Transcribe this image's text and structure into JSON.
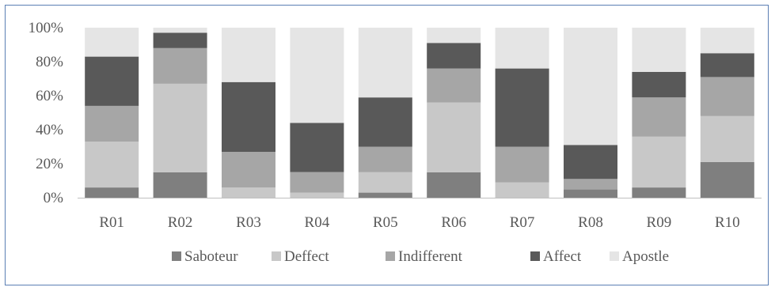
{
  "chart_data": {
    "type": "bar",
    "stacked": true,
    "percent": true,
    "categories": [
      "R01",
      "R02",
      "R03",
      "R04",
      "R05",
      "R06",
      "R07",
      "R08",
      "R09",
      "R10"
    ],
    "series": [
      {
        "name": "Saboteur",
        "color": "#7f7f7f",
        "values": [
          6,
          15,
          0,
          0,
          3,
          15,
          0,
          5,
          6,
          21
        ]
      },
      {
        "name": "Deffect",
        "color": "#c8c8c8",
        "values": [
          27,
          52,
          6,
          3,
          12,
          41,
          9,
          0,
          30,
          27
        ]
      },
      {
        "name": "Indifferent",
        "color": "#a6a6a6",
        "values": [
          21,
          21,
          21,
          12,
          15,
          20,
          21,
          6,
          23,
          23
        ]
      },
      {
        "name": "Affect",
        "color": "#595959",
        "values": [
          29,
          9,
          41,
          29,
          29,
          15,
          46,
          20,
          15,
          14
        ]
      },
      {
        "name": "Apostle",
        "color": "#e5e5e5",
        "values": [
          17,
          3,
          32,
          56,
          41,
          9,
          24,
          69,
          26,
          15
        ]
      }
    ],
    "yticks": [
      "0%",
      "20%",
      "40%",
      "60%",
      "80%",
      "100%"
    ],
    "ylim": [
      0,
      100
    ],
    "grid": false,
    "legend": "bottom"
  }
}
